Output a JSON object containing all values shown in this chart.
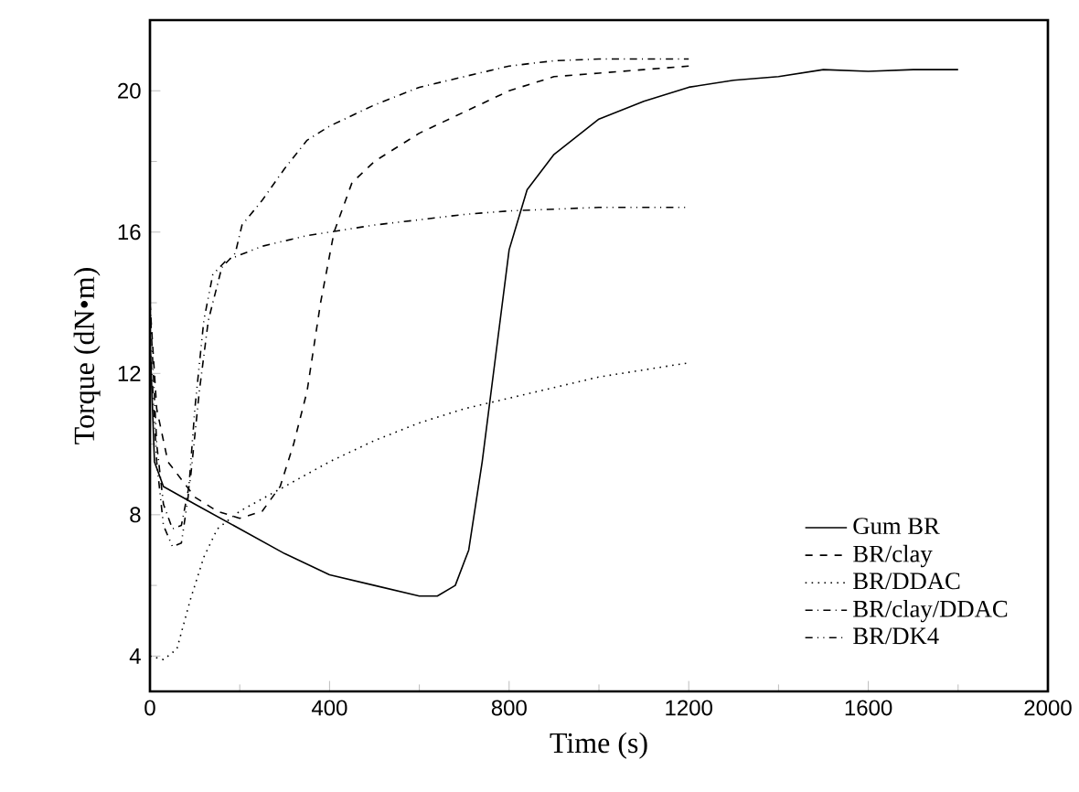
{
  "chart_data": {
    "type": "line",
    "xlabel": "Time (s)",
    "ylabel": "Torque (dN•m)",
    "xlim": [
      0,
      2000
    ],
    "ylim": [
      3,
      22
    ],
    "xticks": [
      0,
      400,
      800,
      1200,
      1600,
      2000
    ],
    "yticks": [
      4,
      8,
      12,
      16,
      20
    ],
    "grid": false,
    "legend": "bottom right",
    "marker": "none",
    "series": [
      {
        "name": "Gum BR",
        "color": "#000000",
        "line_style": "solid",
        "x": [
          0,
          10,
          30,
          100,
          200,
          300,
          400,
          500,
          600,
          640,
          680,
          710,
          740,
          770,
          800,
          840,
          900,
          1000,
          1100,
          1200,
          1300,
          1400,
          1500,
          1600,
          1700,
          1800
        ],
        "values": [
          13,
          9.5,
          8.8,
          8.3,
          7.6,
          6.9,
          6.3,
          6.0,
          5.7,
          5.7,
          6.0,
          7.0,
          9.5,
          12.5,
          15.5,
          17.2,
          18.2,
          19.2,
          19.7,
          20.1,
          20.3,
          20.4,
          20.6,
          20.55,
          20.6,
          20.6
        ]
      },
      {
        "name": "BR/clay",
        "color": "#000000",
        "line_style": "dashed",
        "x": [
          0,
          15,
          40,
          100,
          150,
          200,
          250,
          290,
          320,
          350,
          380,
          410,
          450,
          500,
          600,
          700,
          800,
          900,
          1000,
          1100,
          1200
        ],
        "values": [
          14,
          11,
          9.5,
          8.5,
          8.1,
          7.9,
          8.1,
          8.8,
          10,
          11.5,
          14,
          16,
          17.4,
          18,
          18.8,
          19.4,
          20,
          20.4,
          20.5,
          20.6,
          20.7
        ]
      },
      {
        "name": "BR/DDAC",
        "color": "#000000",
        "line_style": "dotted",
        "x": [
          0,
          30,
          60,
          90,
          120,
          150,
          200,
          300,
          400,
          500,
          600,
          700,
          800,
          900,
          1000,
          1100,
          1200
        ],
        "values": [
          4.0,
          3.9,
          4.2,
          5.6,
          6.8,
          7.6,
          8.1,
          8.8,
          9.5,
          10.1,
          10.6,
          11.0,
          11.3,
          11.6,
          11.9,
          12.1,
          12.3
        ]
      },
      {
        "name": "BR/clay/DDAC",
        "color": "#000000",
        "line_style": "dashdot",
        "x": [
          0,
          15,
          30,
          50,
          70,
          90,
          110,
          130,
          160,
          190,
          205,
          250,
          300,
          350,
          400,
          500,
          600,
          700,
          800,
          900,
          1000,
          1100,
          1200
        ],
        "values": [
          14,
          10,
          8.3,
          7.6,
          7.7,
          9,
          11.5,
          13.5,
          15,
          15.4,
          16.2,
          16.9,
          17.8,
          18.6,
          19,
          19.6,
          20.1,
          20.4,
          20.7,
          20.85,
          20.9,
          20.9,
          20.9
        ]
      },
      {
        "name": "BR/DK4",
        "color": "#000000",
        "line_style": "dashdotdot",
        "x": [
          0,
          15,
          30,
          50,
          70,
          85,
          100,
          120,
          140,
          170,
          250,
          350,
          400,
          500,
          600,
          700,
          800,
          900,
          1000,
          1200
        ],
        "values": [
          13,
          9.5,
          7.7,
          7.1,
          7.2,
          8.5,
          11,
          13.5,
          14.8,
          15.2,
          15.6,
          15.9,
          16.0,
          16.2,
          16.35,
          16.5,
          16.6,
          16.65,
          16.7,
          16.7
        ]
      }
    ]
  }
}
